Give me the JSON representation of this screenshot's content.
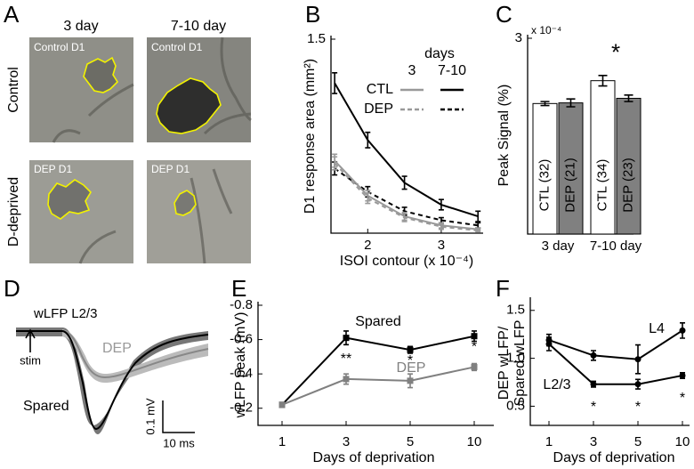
{
  "panel_labels": [
    "A",
    "B",
    "C",
    "D",
    "E",
    "F"
  ],
  "panel_a": {
    "columns": [
      "3 day",
      "7-10 day"
    ],
    "rows": [
      "Control",
      "D-deprived"
    ],
    "image_labels": [
      "Control D1",
      "Control D1",
      "DEP D1",
      "DEP D1"
    ]
  },
  "panel_d": {
    "title": "wLFP L2/3",
    "stim_label": "stim",
    "traces": [
      "DEP",
      "Spared"
    ],
    "scale_y": "0.1 mV",
    "scale_x": "10 ms"
  },
  "chart_data": [
    {
      "type": "line",
      "ylabel": "D1 response area (mm²)",
      "xlabel": "ISOI contour (x 10⁻⁴)",
      "x": [
        1.55,
        2,
        2.5,
        3,
        3.5
      ],
      "xlim": [
        1.5,
        3.57
      ],
      "xticks": [
        2,
        3
      ],
      "ylim": [
        0,
        1.5
      ],
      "yticks": [
        1.5
      ],
      "legend": {
        "title": "days",
        "columns": [
          "3",
          "7-10"
        ],
        "rows": [
          "CTL",
          "DEP"
        ]
      },
      "series": [
        {
          "color": "#000000",
          "dashed": false,
          "legend_row": 0,
          "legend_col": 1,
          "values": [
            1.16,
            0.72,
            0.39,
            0.22,
            0.13
          ],
          "errors": [
            0.08,
            0.06,
            0.05,
            0.04,
            0.04
          ]
        },
        {
          "color": "#000000",
          "dashed": true,
          "legend_row": 1,
          "legend_col": 1,
          "values": [
            0.5,
            0.32,
            0.17,
            0.1,
            0.06
          ],
          "errors": [
            0.05,
            0.04,
            0.03,
            0.02,
            0.02
          ]
        },
        {
          "color": "#999999",
          "dashed": false,
          "legend_row": 0,
          "legend_col": 0,
          "values": [
            0.56,
            0.29,
            0.13,
            0.06,
            0.03
          ],
          "errors": [
            0.05,
            0.04,
            0.03,
            0.02,
            0.01
          ]
        },
        {
          "color": "#999999",
          "dashed": true,
          "legend_row": 1,
          "legend_col": 0,
          "values": [
            0.54,
            0.27,
            0.12,
            0.05,
            0.02
          ],
          "errors": [
            0.05,
            0.04,
            0.03,
            0.02,
            0.01
          ]
        }
      ]
    },
    {
      "type": "bar",
      "ylabel": "Peak Signal (%)",
      "multiplier": "x 10⁻⁴",
      "categories": [
        "3 day",
        "7-10 day"
      ],
      "ylim": [
        0,
        3
      ],
      "yticks": [
        3
      ],
      "series": [
        {
          "color": "#ffffff",
          "values": [
            2.0,
            2.35
          ],
          "errors": [
            0.03,
            0.08
          ],
          "bar_labels": [
            "CTL (32)",
            "CTL (34)"
          ]
        },
        {
          "color": "#808080",
          "values": [
            2.01,
            2.08
          ],
          "errors": [
            0.06,
            0.05
          ],
          "bar_labels": [
            "DEP (21)",
            "DEP (23)"
          ]
        }
      ],
      "annotations": [
        {
          "text": "*",
          "category": 1
        }
      ]
    },
    {
      "type": "line",
      "ylabel": "wLFP peak (mV)",
      "xlabel": "Days of deprivation",
      "categories": [
        "1",
        "3",
        "5",
        "10"
      ],
      "ylim": [
        -0.1,
        -0.8
      ],
      "yticks": [
        -0.8,
        -0.6,
        -0.4,
        -0.2
      ],
      "marker": "square",
      "series": [
        {
          "name": "Spared",
          "color": "#000000",
          "values": [
            -0.22,
            -0.61,
            -0.54,
            -0.62
          ],
          "errors": [
            0.01,
            0.04,
            0.02,
            0.03
          ]
        },
        {
          "name": "DEP",
          "color": "#808080",
          "values": [
            -0.22,
            -0.37,
            -0.36,
            -0.44
          ],
          "errors": [
            0.01,
            0.03,
            0.04,
            0.02
          ]
        }
      ],
      "annotations": [
        {
          "text": "**",
          "category": 1
        },
        {
          "text": "*",
          "category": 2
        },
        {
          "text": "*",
          "category": 3
        }
      ]
    },
    {
      "type": "line",
      "ylabel": [
        "DEP wLFP/",
        "Spared wLFP"
      ],
      "xlabel": "Days of deprivation",
      "categories": [
        "1",
        "3",
        "5",
        "10"
      ],
      "ylim": [
        0.3,
        1.6
      ],
      "yticks": [
        0.5,
        {
          "value": 1,
          "label": "1.0"
        },
        1.5
      ],
      "marker": "circle",
      "series": [
        {
          "name": "L4",
          "color": "#000000",
          "values": [
            1.19,
            1.03,
            0.99,
            1.29
          ],
          "errors": [
            0.06,
            0.05,
            0.15,
            0.08
          ]
        },
        {
          "name": "L2/3",
          "color": "#000000",
          "values": [
            1.15,
            0.73,
            0.73,
            0.82
          ],
          "errors": [
            0.07,
            0.03,
            0.05,
            0.03
          ]
        }
      ],
      "annotations": [
        {
          "text": "*",
          "category": 1
        },
        {
          "text": "*",
          "category": 2
        },
        {
          "text": "*",
          "category": 3
        }
      ]
    }
  ]
}
